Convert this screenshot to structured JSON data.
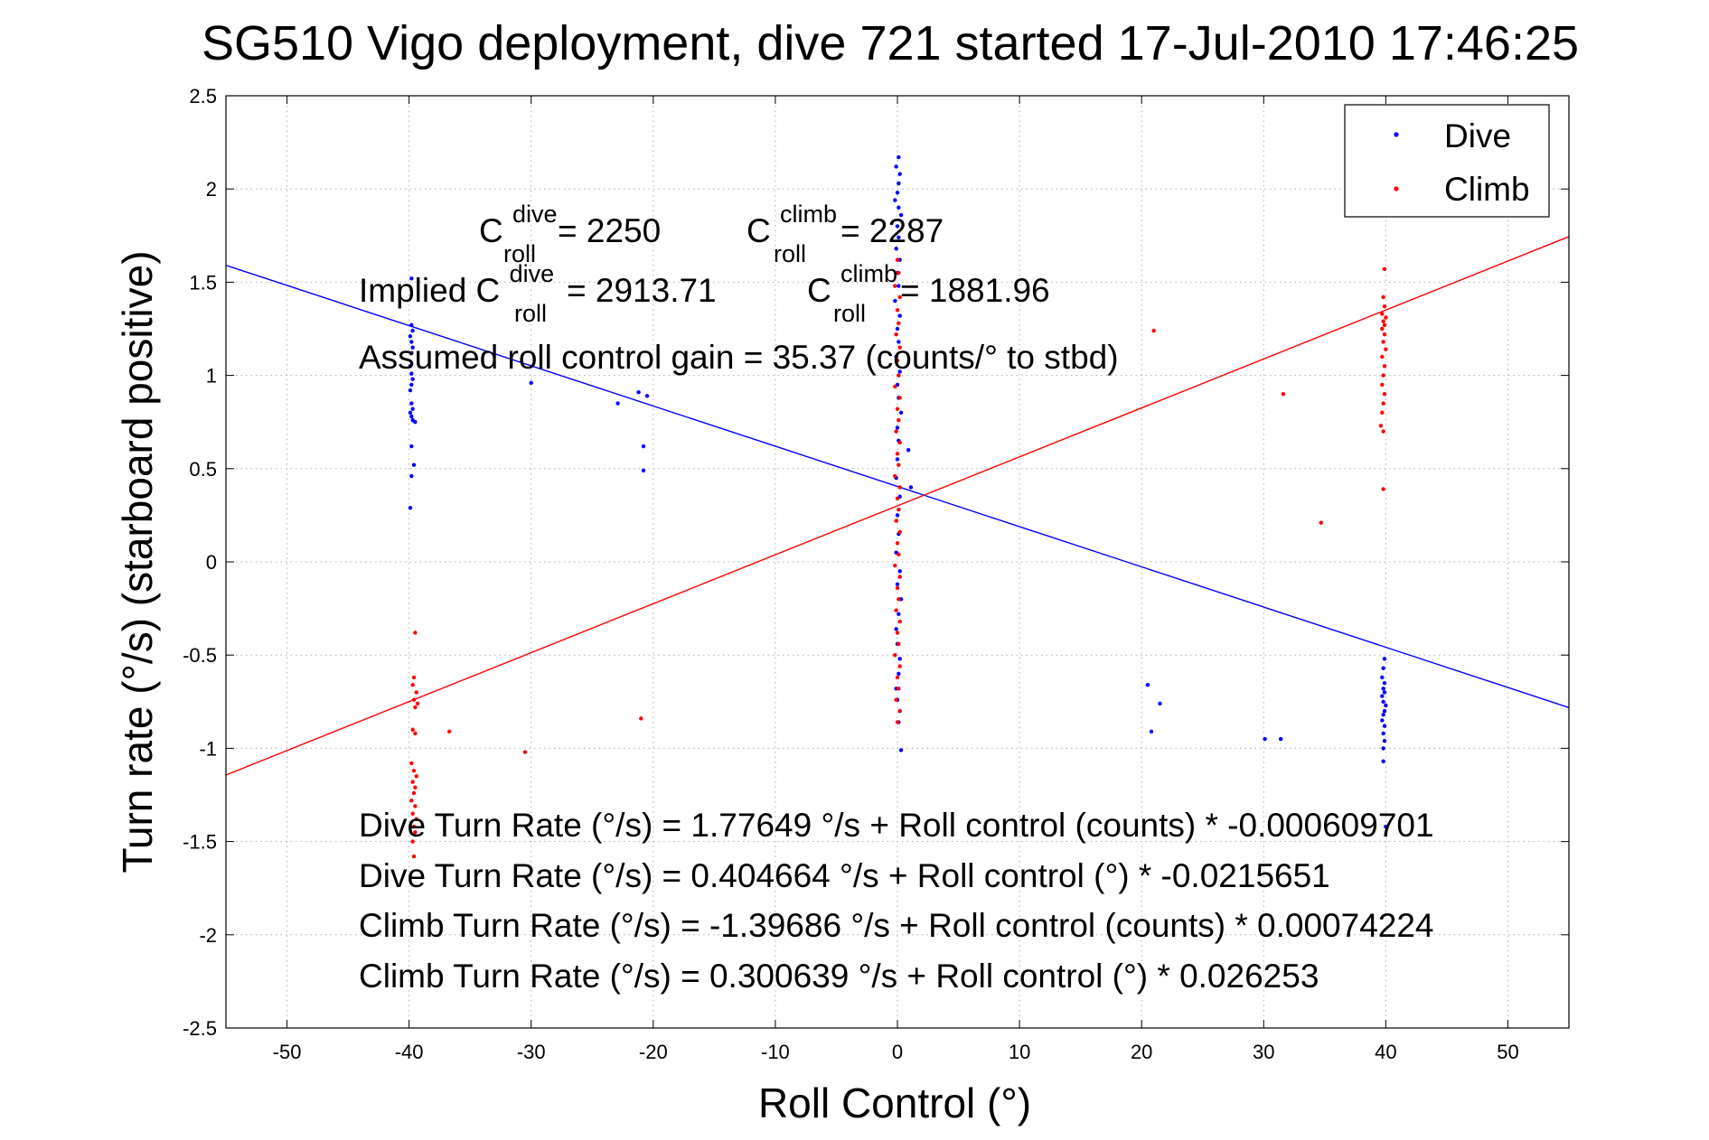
{
  "chart_data": {
    "type": "scatter",
    "title": "SG510 Vigo deployment, dive 721 started 17-Jul-2010 17:46:25",
    "xlabel": "Roll Control (°)",
    "ylabel": "Turn rate (°/s) (starboard positive)",
    "xlim": [
      -55,
      55
    ],
    "ylim": [
      -2.5,
      2.5
    ],
    "x_ticks": [
      -50,
      -40,
      -30,
      -20,
      -10,
      0,
      10,
      20,
      30,
      40,
      50
    ],
    "y_ticks": [
      2.5,
      2,
      1.5,
      1,
      0.5,
      0,
      -0.5,
      -1,
      -1.5,
      -2,
      -2.5
    ],
    "grid": true,
    "legend_position": "top-right",
    "legend": [
      {
        "name": "Dive",
        "color": "#0000ff"
      },
      {
        "name": "Climb",
        "color": "#ff0000"
      }
    ],
    "series": [
      {
        "name": "Dive",
        "color": "#0000ff",
        "marker": "dot",
        "points": [
          [
            -39.8,
            1.52
          ],
          [
            -39.8,
            1.27
          ],
          [
            -39.7,
            1.24
          ],
          [
            -39.9,
            1.21
          ],
          [
            -39.8,
            1.18
          ],
          [
            -39.7,
            1.15
          ],
          [
            -39.8,
            1.12
          ],
          [
            -39.9,
            1.05
          ],
          [
            -39.8,
            1.01
          ],
          [
            -39.7,
            0.98
          ],
          [
            -39.8,
            0.95
          ],
          [
            -39.9,
            0.92
          ],
          [
            -39.8,
            0.85
          ],
          [
            -39.7,
            0.82
          ],
          [
            -39.9,
            0.8
          ],
          [
            -39.8,
            0.78
          ],
          [
            -39.7,
            0.76
          ],
          [
            -39.5,
            0.75
          ],
          [
            -39.8,
            0.62
          ],
          [
            -39.6,
            0.52
          ],
          [
            -39.8,
            0.46
          ],
          [
            -39.9,
            0.29
          ],
          [
            -30.0,
            0.96
          ],
          [
            -22.9,
            0.85
          ],
          [
            -21.2,
            0.91
          ],
          [
            -20.5,
            0.89
          ],
          [
            -20.8,
            0.62
          ],
          [
            -20.8,
            0.49
          ],
          [
            0.1,
            2.17
          ],
          [
            -0.1,
            2.12
          ],
          [
            0.2,
            2.08
          ],
          [
            0.1,
            2.03
          ],
          [
            0.0,
            1.98
          ],
          [
            -0.2,
            1.94
          ],
          [
            0.1,
            1.9
          ],
          [
            0.3,
            1.86
          ],
          [
            0.0,
            1.8
          ],
          [
            0.1,
            1.74
          ],
          [
            -0.1,
            1.68
          ],
          [
            0.2,
            1.62
          ],
          [
            0.0,
            1.55
          ],
          [
            0.1,
            1.48
          ],
          [
            -0.2,
            1.4
          ],
          [
            0.2,
            1.32
          ],
          [
            0.0,
            1.25
          ],
          [
            0.1,
            1.18
          ],
          [
            -0.1,
            1.1
          ],
          [
            0.2,
            1.02
          ],
          [
            0.0,
            0.95
          ],
          [
            0.1,
            0.88
          ],
          [
            0.3,
            0.8
          ],
          [
            0.0,
            0.72
          ],
          [
            0.1,
            0.65
          ],
          [
            0.9,
            0.6
          ],
          [
            1.1,
            0.4
          ],
          [
            0.0,
            0.55
          ],
          [
            -0.1,
            0.45
          ],
          [
            0.2,
            0.35
          ],
          [
            0.0,
            0.25
          ],
          [
            0.1,
            0.15
          ],
          [
            -0.1,
            0.05
          ],
          [
            0.2,
            -0.05
          ],
          [
            0.0,
            -0.12
          ],
          [
            0.3,
            -0.2
          ],
          [
            0.1,
            -0.28
          ],
          [
            -0.1,
            -0.36
          ],
          [
            0.0,
            -0.44
          ],
          [
            0.2,
            -0.52
          ],
          [
            0.1,
            -0.6
          ],
          [
            -0.1,
            -0.68
          ],
          [
            0.0,
            -0.74
          ],
          [
            0.2,
            -0.8
          ],
          [
            0.1,
            -0.86
          ],
          [
            0.3,
            -1.01
          ],
          [
            20.5,
            -0.66
          ],
          [
            20.8,
            -0.91
          ],
          [
            21.5,
            -0.76
          ],
          [
            30.1,
            -0.95
          ],
          [
            31.4,
            -0.95
          ],
          [
            39.9,
            -0.52
          ],
          [
            39.8,
            -0.57
          ],
          [
            39.7,
            -0.62
          ],
          [
            39.9,
            -0.65
          ],
          [
            39.8,
            -0.68
          ],
          [
            39.9,
            -0.7
          ],
          [
            39.7,
            -0.72
          ],
          [
            39.8,
            -0.75
          ],
          [
            40.0,
            -0.77
          ],
          [
            39.9,
            -0.8
          ],
          [
            39.8,
            -0.82
          ],
          [
            39.7,
            -0.85
          ],
          [
            39.9,
            -0.88
          ],
          [
            39.8,
            -0.92
          ],
          [
            39.9,
            -0.96
          ],
          [
            39.8,
            -1.0
          ],
          [
            39.8,
            -1.07
          ],
          [
            40.0,
            -1.42
          ]
        ]
      },
      {
        "name": "Climb",
        "color": "#ff0000",
        "marker": "dot",
        "points": [
          [
            -39.5,
            -0.38
          ],
          [
            -39.6,
            -0.62
          ],
          [
            -39.7,
            -0.66
          ],
          [
            -39.4,
            -0.7
          ],
          [
            -39.6,
            -0.74
          ],
          [
            -39.3,
            -0.76
          ],
          [
            -39.5,
            -0.78
          ],
          [
            -39.7,
            -0.9
          ],
          [
            -39.5,
            -0.92
          ],
          [
            -39.8,
            -1.08
          ],
          [
            -39.6,
            -1.12
          ],
          [
            -39.4,
            -1.15
          ],
          [
            -39.7,
            -1.18
          ],
          [
            -39.5,
            -1.21
          ],
          [
            -39.6,
            -1.24
          ],
          [
            -39.8,
            -1.28
          ],
          [
            -39.5,
            -1.31
          ],
          [
            -39.7,
            -1.35
          ],
          [
            -39.4,
            -1.38
          ],
          [
            -39.6,
            -1.42
          ],
          [
            -39.5,
            -1.45
          ],
          [
            -39.7,
            -1.5
          ],
          [
            -39.6,
            -1.58
          ],
          [
            -36.7,
            -0.91
          ],
          [
            -30.5,
            -1.02
          ],
          [
            -21.0,
            -0.84
          ],
          [
            0.0,
            1.62
          ],
          [
            0.1,
            1.55
          ],
          [
            -0.2,
            1.48
          ],
          [
            0.2,
            1.42
          ],
          [
            0.0,
            1.35
          ],
          [
            0.1,
            1.28
          ],
          [
            -0.1,
            1.22
          ],
          [
            0.2,
            1.15
          ],
          [
            0.0,
            1.08
          ],
          [
            0.1,
            1.0
          ],
          [
            -0.2,
            0.94
          ],
          [
            0.2,
            0.88
          ],
          [
            0.0,
            0.82
          ],
          [
            0.1,
            0.76
          ],
          [
            -0.1,
            0.7
          ],
          [
            0.2,
            0.64
          ],
          [
            0.0,
            0.58
          ],
          [
            0.1,
            0.52
          ],
          [
            -0.2,
            0.46
          ],
          [
            0.2,
            0.4
          ],
          [
            0.0,
            0.34
          ],
          [
            0.1,
            0.28
          ],
          [
            -0.1,
            0.22
          ],
          [
            0.2,
            0.16
          ],
          [
            0.0,
            0.1
          ],
          [
            0.1,
            0.04
          ],
          [
            -0.2,
            -0.02
          ],
          [
            0.2,
            -0.08
          ],
          [
            0.0,
            -0.14
          ],
          [
            0.1,
            -0.2
          ],
          [
            -0.1,
            -0.26
          ],
          [
            0.2,
            -0.32
          ],
          [
            0.0,
            -0.38
          ],
          [
            0.1,
            -0.44
          ],
          [
            -0.2,
            -0.5
          ],
          [
            0.2,
            -0.56
          ],
          [
            0.0,
            -0.62
          ],
          [
            0.1,
            -0.68
          ],
          [
            -0.1,
            -0.74
          ],
          [
            0.2,
            -0.8
          ],
          [
            0.0,
            -0.86
          ],
          [
            21.0,
            1.24
          ],
          [
            31.6,
            0.9
          ],
          [
            34.7,
            0.21
          ],
          [
            39.9,
            1.57
          ],
          [
            39.8,
            1.42
          ],
          [
            39.9,
            1.37
          ],
          [
            39.7,
            1.33
          ],
          [
            40.0,
            1.31
          ],
          [
            39.8,
            1.29
          ],
          [
            39.9,
            1.27
          ],
          [
            39.7,
            1.25
          ],
          [
            39.9,
            1.22
          ],
          [
            39.8,
            1.18
          ],
          [
            40.0,
            1.14
          ],
          [
            39.7,
            1.1
          ],
          [
            39.9,
            1.05
          ],
          [
            39.8,
            1.0
          ],
          [
            39.7,
            0.95
          ],
          [
            39.9,
            0.9
          ],
          [
            39.8,
            0.85
          ],
          [
            39.7,
            0.8
          ],
          [
            39.6,
            0.73
          ],
          [
            39.8,
            0.7
          ],
          [
            39.8,
            0.39
          ]
        ]
      }
    ],
    "fit_lines": [
      {
        "name": "Dive fit",
        "color": "#0000ff",
        "intercept": 0.404664,
        "slope": -0.0215651
      },
      {
        "name": "Climb fit",
        "color": "#ff0000",
        "intercept": 0.300639,
        "slope": 0.026253
      }
    ],
    "annotations": {
      "croll_dive_base": "C",
      "croll_dive_sup": "dive",
      "croll_dive_sub": "roll",
      "croll_dive_value": " = 2250",
      "croll_climb_base": "C",
      "croll_climb_sup": "climb",
      "croll_climb_sub": "roll",
      "croll_climb_value": " = 2287",
      "implied_prefix": "Implied C",
      "implied_dive_sup": "dive",
      "implied_dive_sub": "roll",
      "implied_dive_value": " = 2913.71",
      "implied_climb_base": "C",
      "implied_climb_sup": "climb",
      "implied_climb_sub": "roll",
      "implied_climb_value": " = 1881.96",
      "gain": "Assumed roll control gain = 35.37 (counts/° to stbd)",
      "eq1": "Dive Turn Rate (°/s) = 1.77649 °/s + Roll control (counts) * -0.000609701",
      "eq2": "Dive Turn Rate (°/s) = 0.404664 °/s + Roll control (°) * -0.0215651",
      "eq3": "Climb Turn Rate (°/s) = -1.39686 °/s + Roll control (counts) * 0.00074224",
      "eq4": "Climb Turn Rate (°/s) = 0.300639 °/s + Roll control (°) * 0.026253"
    }
  }
}
